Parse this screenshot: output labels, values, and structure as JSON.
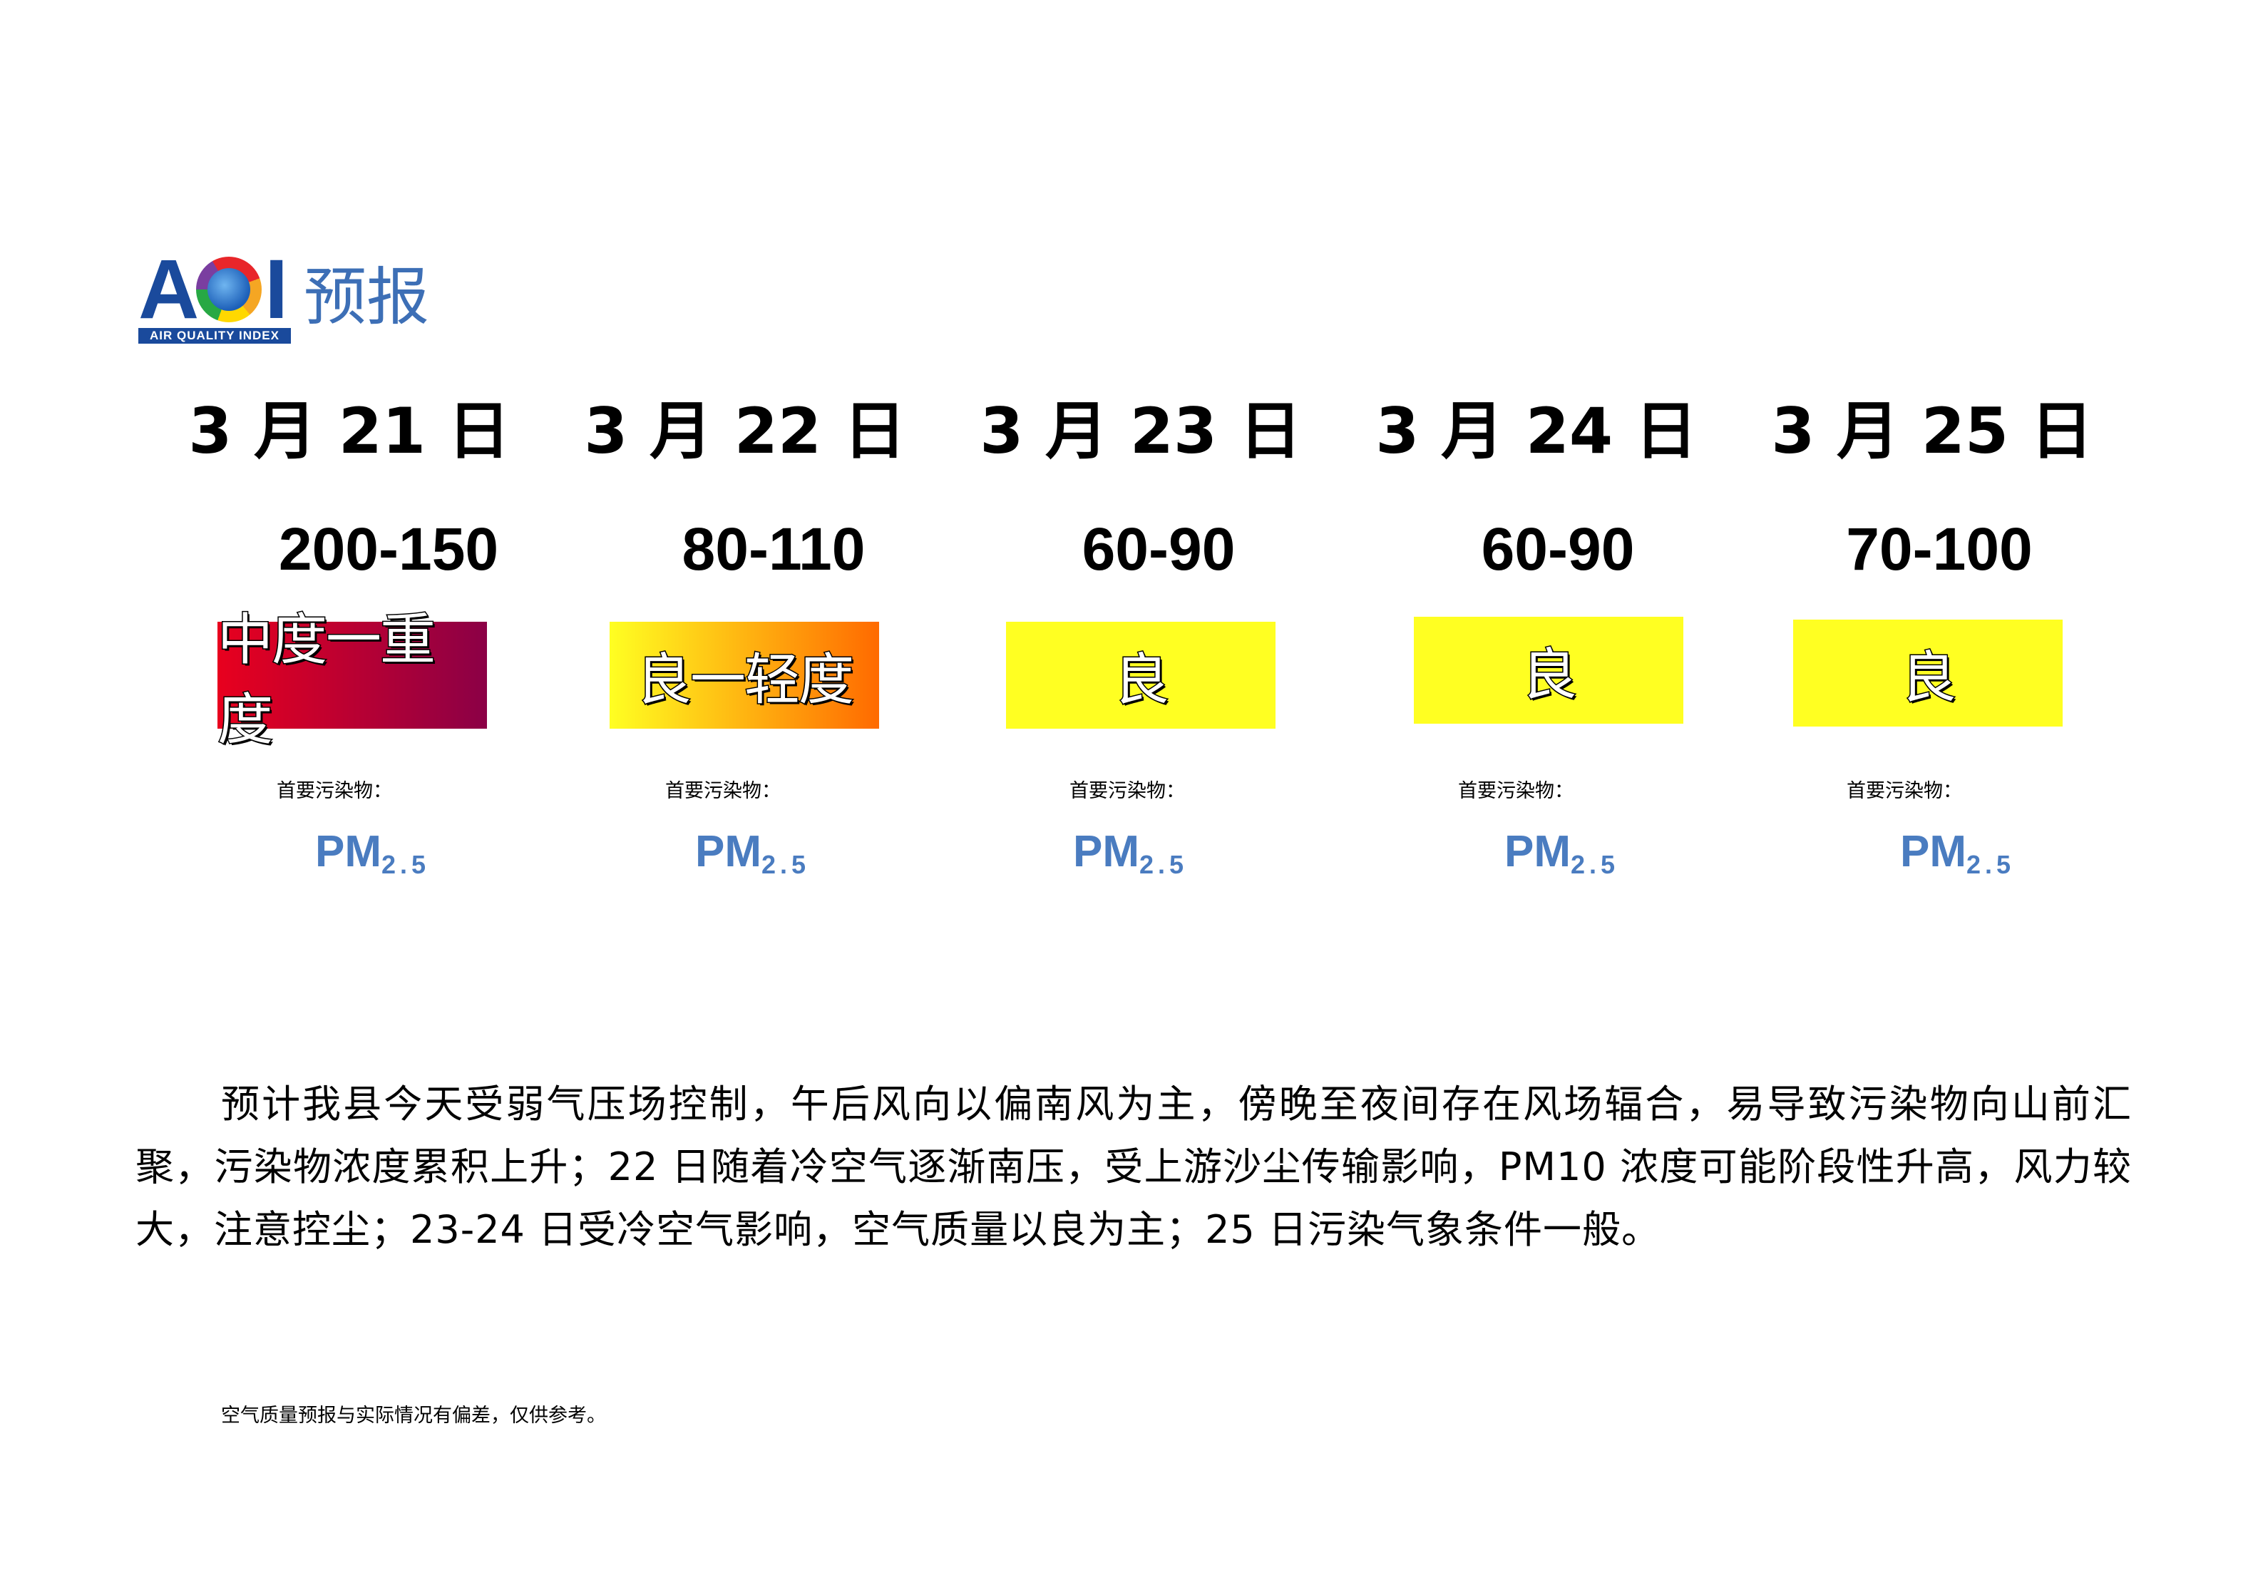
{
  "header": {
    "logo_letters": "AQI",
    "logo_subtitle": "AIR QUALITY INDEX",
    "title": "预报"
  },
  "days": [
    {
      "date": "3 月 21 日",
      "range": "200-150",
      "level": "中度一重度",
      "pollutant_label": "首要污染物：",
      "pollutant_main": "PM",
      "pollutant_sub": "2.5",
      "badge_colors": [
        "#e8001e",
        "#8b0046"
      ]
    },
    {
      "date": "3 月 22 日",
      "range": "80-110",
      "level": "良一轻度",
      "pollutant_label": "首要污染物：",
      "pollutant_main": "PM",
      "pollutant_sub": "2.5",
      "badge_colors": [
        "#ffff22",
        "#ff6a00"
      ]
    },
    {
      "date": "3 月 23 日",
      "range": "60-90",
      "level": "良",
      "pollutant_label": "首要污染物：",
      "pollutant_main": "PM",
      "pollutant_sub": "2.5",
      "badge_colors": [
        "#ffff22",
        "#ffff22"
      ]
    },
    {
      "date": "3 月 24 日",
      "range": "60-90",
      "level": "良",
      "pollutant_label": "首要污染物：",
      "pollutant_main": "PM",
      "pollutant_sub": "2.5",
      "badge_colors": [
        "#ffff22",
        "#ffff22"
      ]
    },
    {
      "date": "3 月 25 日",
      "range": "70-100",
      "level": "良",
      "pollutant_label": "首要污染物：",
      "pollutant_main": "PM",
      "pollutant_sub": "2.5",
      "badge_colors": [
        "#ffff22",
        "#ffff22"
      ]
    }
  ],
  "description": "预计我县今天受弱气压场控制，午后风向以偏南风为主，傍晚至夜间存在风场辐合，易导致污染物向山前汇聚，污染物浓度累积上升；22 日随着冷空气逐渐南压，受上游沙尘传输影响，PM10 浓度可能阶段性升高，风力较大，注意控尘；23-24 日受冷空气影响，空气质量以良为主；25 日污染气象条件一般。",
  "disclaimer": "空气质量预报与实际情况有偏差，仅供参考。"
}
